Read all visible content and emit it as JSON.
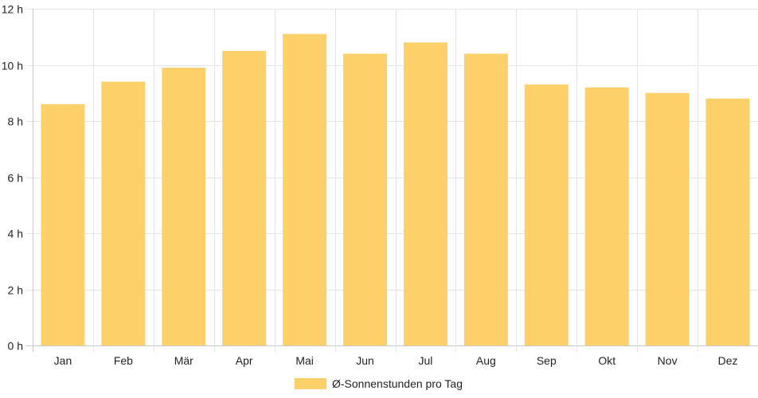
{
  "chart_data": {
    "type": "bar",
    "categories": [
      "Jan",
      "Feb",
      "Mär",
      "Apr",
      "Mai",
      "Jun",
      "Jul",
      "Aug",
      "Sep",
      "Okt",
      "Nov",
      "Dez"
    ],
    "series": [
      {
        "name": "Ø-Sonnenstunden pro Tag",
        "values": [
          8.6,
          9.4,
          9.9,
          10.5,
          11.1,
          10.4,
          10.8,
          10.4,
          9.3,
          9.2,
          9.0,
          8.8
        ],
        "color": "#fdd06a"
      }
    ],
    "yticks": [
      "0 h",
      "2 h",
      "4 h",
      "6 h",
      "8 h",
      "10 h",
      "12 h"
    ],
    "ylim": [
      0,
      12
    ],
    "grid": true,
    "legend_position": "bottom"
  }
}
